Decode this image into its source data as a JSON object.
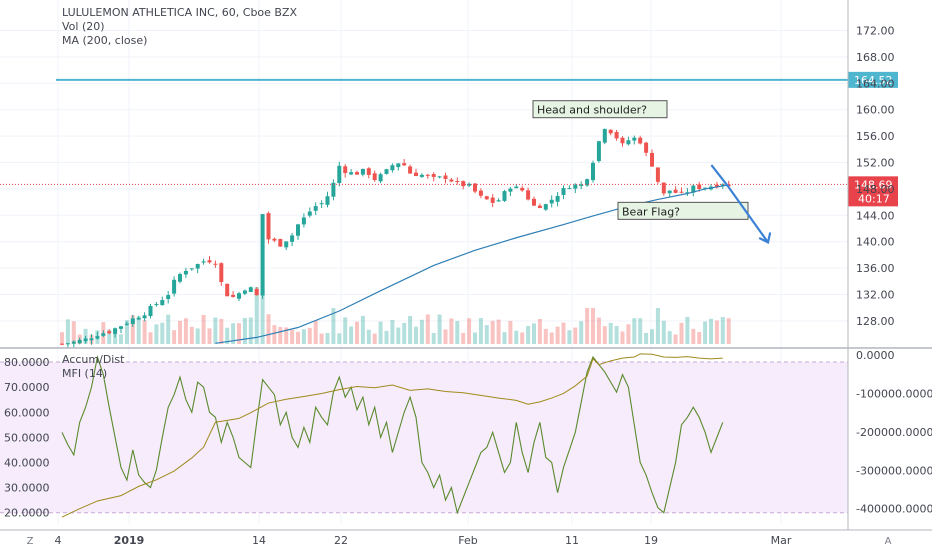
{
  "legend": {
    "symbol": "LULULEMON ATHLETICA INC, 60, Cboe BZX",
    "vol": "Vol (20)",
    "ma": "MA (200, close)",
    "ad": "Accum/Dist",
    "mfi": "MFI (14)"
  },
  "badges": {
    "resistance": "164.52",
    "last_price": "148.69",
    "countdown": "40:17"
  },
  "annotations": {
    "hs": "Head and shoulder?",
    "flag": "Bear Flag?"
  },
  "corner": {
    "left": "Z",
    "right": "A"
  },
  "colors": {
    "up": "#26a69a",
    "down": "#ef5350",
    "ma": "#2f7fb6",
    "resistance": "#4fb6cf",
    "arrow": "#3b82d6",
    "mfi": "#5a8a2e",
    "ad": "#a08a1c",
    "mfi_bg": "#f6ecfb",
    "price_badge": "#e8434b"
  },
  "chart_data": [
    {
      "type": "candlestick",
      "x_tick_labels": [
        "4",
        "2019",
        "14",
        "22",
        "Feb",
        "11",
        "19",
        "Mar"
      ],
      "y_tick_labels": [
        "128.00",
        "132.00",
        "136.00",
        "140.00",
        "144.00",
        "148.00",
        "152.00",
        "156.00",
        "160.00",
        "164.00",
        "168.00",
        "172.00"
      ],
      "ylim": [
        124.5,
        174.5
      ],
      "resistance_level": 164.52,
      "last_price": 148.69,
      "close_path": [
        [
          0,
          124.5
        ],
        [
          2,
          124.8
        ],
        [
          4,
          125.2
        ],
        [
          6,
          126
        ],
        [
          8,
          126.4
        ],
        [
          10,
          127.3
        ],
        [
          12,
          128.3
        ],
        [
          14,
          129.2
        ],
        [
          16,
          130.6
        ],
        [
          18,
          132.1
        ],
        [
          19.4,
          134.6
        ],
        [
          21,
          135.8
        ],
        [
          22.7,
          136.4
        ],
        [
          24.5,
          137.3
        ],
        [
          26,
          136.9
        ],
        [
          27.5,
          132.2
        ],
        [
          29,
          131.6
        ],
        [
          30.5,
          132.5
        ],
        [
          31.5,
          133.4
        ],
        [
          33,
          131.8
        ],
        [
          34,
          144.2
        ],
        [
          35,
          140.4
        ],
        [
          37,
          139.6
        ],
        [
          39,
          141
        ],
        [
          40,
          142.6
        ],
        [
          41.5,
          144
        ],
        [
          42.5,
          145.2
        ],
        [
          44.5,
          146
        ],
        [
          46,
          148.8
        ],
        [
          47,
          151.5
        ],
        [
          48.5,
          150.4
        ],
        [
          50,
          150.4
        ],
        [
          51.5,
          150.8
        ],
        [
          53,
          149.5
        ],
        [
          54.5,
          150.2
        ],
        [
          56,
          151.6
        ],
        [
          57.5,
          152.2
        ],
        [
          59,
          150.4
        ],
        [
          61,
          150.1
        ],
        [
          63,
          149.5
        ],
        [
          65,
          149.8
        ],
        [
          67,
          148.8
        ],
        [
          69,
          148.4
        ],
        [
          71,
          146.7
        ],
        [
          73.5,
          145.8
        ],
        [
          76,
          148.4
        ],
        [
          78,
          147.8
        ],
        [
          80,
          145.4
        ],
        [
          82,
          145.6
        ],
        [
          84,
          147.2
        ],
        [
          86,
          148.5
        ],
        [
          88,
          148.6
        ],
        [
          89.5,
          150.5
        ],
        [
          90.5,
          154.1
        ],
        [
          92,
          157.4
        ],
        [
          93.5,
          156.4
        ],
        [
          95,
          154.6
        ],
        [
          96,
          155.4
        ],
        [
          97.5,
          155.8
        ],
        [
          98.5,
          154.6
        ],
        [
          99.5,
          151.9
        ],
        [
          100.5,
          151.5
        ],
        [
          101.5,
          146.8
        ],
        [
          103,
          147.8
        ],
        [
          105,
          147.1
        ],
        [
          107,
          148.2
        ],
        [
          109,
          148.3
        ],
        [
          110.5,
          148.5
        ],
        [
          112,
          148.9
        ],
        [
          113,
          148.3
        ]
      ],
      "ma200": [
        [
          26,
          124.6
        ],
        [
          33,
          125.5
        ],
        [
          40,
          127
        ],
        [
          47,
          129.5
        ],
        [
          55,
          133
        ],
        [
          63,
          136.4
        ],
        [
          70,
          138.7
        ],
        [
          77,
          140.6
        ],
        [
          85,
          142.6
        ],
        [
          90,
          143.9
        ],
        [
          96,
          145.4
        ],
        [
          101,
          146.4
        ],
        [
          106,
          147.3
        ],
        [
          109,
          148
        ],
        [
          113,
          148.6
        ]
      ],
      "volume_range": [
        0,
        20
      ]
    },
    {
      "type": "line",
      "title": "Accum/Dist / MFI (14)",
      "y_left_tick_labels": [
        "20.0000",
        "30.0000",
        "40.0000",
        "50.0000",
        "60.0000",
        "70.0000",
        "80.0000"
      ],
      "y_right_tick_labels": [
        "0.0000",
        "-100000.0000",
        "-200000.0000",
        "-300000.0000",
        "-400000.0000"
      ],
      "mfi_ylim": [
        15.5,
        84
      ],
      "ad_ylim": [
        -440000,
        8000
      ],
      "mfi_bands": [
        20,
        80
      ],
      "series": [
        {
          "name": "MFI (14)",
          "points": [
            [
              0,
              52
            ],
            [
              1,
              47
            ],
            [
              2,
              43
            ],
            [
              3,
              56
            ],
            [
              4,
              62
            ],
            [
              5,
              70
            ],
            [
              6,
              82
            ],
            [
              7,
              75
            ],
            [
              8,
              62
            ],
            [
              9,
              50
            ],
            [
              10,
              38
            ],
            [
              11,
              33
            ],
            [
              12,
              45
            ],
            [
              13,
              35
            ],
            [
              14,
              32
            ],
            [
              15,
              30
            ],
            [
              16,
              37
            ],
            [
              17,
              50
            ],
            [
              18,
              62
            ],
            [
              19,
              67
            ],
            [
              20,
              74
            ],
            [
              21,
              65
            ],
            [
              22,
              60
            ],
            [
              23,
              72
            ],
            [
              24,
              70
            ],
            [
              25,
              60
            ],
            [
              26,
              58
            ],
            [
              27,
              48
            ],
            [
              28,
              56
            ],
            [
              29,
              50
            ],
            [
              30,
              42
            ],
            [
              31,
              40
            ],
            [
              32,
              38
            ],
            [
              33,
              56
            ],
            [
              34,
              73
            ],
            [
              35,
              70
            ],
            [
              36,
              67
            ],
            [
              37,
              55
            ],
            [
              38,
              60
            ],
            [
              39,
              50
            ],
            [
              40,
              46
            ],
            [
              41,
              54
            ],
            [
              42,
              48
            ],
            [
              43,
              62
            ],
            [
              44,
              58
            ],
            [
              45,
              55
            ],
            [
              46,
              68
            ],
            [
              47,
              74
            ],
            [
              48,
              66
            ],
            [
              49,
              70
            ],
            [
              50,
              61
            ],
            [
              51,
              66
            ],
            [
              52,
              55
            ],
            [
              53,
              62
            ],
            [
              54,
              50
            ],
            [
              55,
              56
            ],
            [
              56,
              44
            ],
            [
              57,
              52
            ],
            [
              58,
              60
            ],
            [
              59,
              66
            ],
            [
              60,
              58
            ],
            [
              61,
              40
            ],
            [
              62,
              36
            ],
            [
              63,
              30
            ],
            [
              64,
              35
            ],
            [
              65,
              25
            ],
            [
              66,
              30
            ],
            [
              67,
              20
            ],
            [
              68,
              26
            ],
            [
              69,
              32
            ],
            [
              70,
              38
            ],
            [
              71,
              44
            ],
            [
              72,
              46
            ],
            [
              73,
              52
            ],
            [
              74,
              44
            ],
            [
              75,
              36
            ],
            [
              76,
              40
            ],
            [
              77,
              56
            ],
            [
              78,
              44
            ],
            [
              79,
              36
            ],
            [
              80,
              48
            ],
            [
              81,
              56
            ],
            [
              82,
              42
            ],
            [
              83,
              40
            ],
            [
              84,
              28
            ],
            [
              85,
              38
            ],
            [
              86,
              45
            ],
            [
              87,
              52
            ],
            [
              88,
              64
            ],
            [
              89,
              76
            ],
            [
              90,
              82
            ],
            [
              91,
              79
            ],
            [
              92,
              76
            ],
            [
              93,
              72
            ],
            [
              94,
              68
            ],
            [
              95,
              75
            ],
            [
              96,
              70
            ],
            [
              97,
              55
            ],
            [
              98,
              40
            ],
            [
              99,
              35
            ],
            [
              100,
              28
            ],
            [
              101,
              22
            ],
            [
              102,
              20
            ],
            [
              103,
              30
            ],
            [
              104,
              40
            ],
            [
              105,
              55
            ],
            [
              106,
              58
            ],
            [
              107,
              62
            ],
            [
              108,
              58
            ],
            [
              109,
              52
            ],
            [
              110,
              44
            ],
            [
              111,
              50
            ],
            [
              112,
              56
            ]
          ]
        },
        {
          "name": "Accum/Dist",
          "points": [
            [
              0,
              -422000
            ],
            [
              3,
              -400000
            ],
            [
              6,
              -380000
            ],
            [
              10,
              -366000
            ],
            [
              13,
              -342000
            ],
            [
              16,
              -325000
            ],
            [
              19,
              -302000
            ],
            [
              22,
              -268000
            ],
            [
              24,
              -240000
            ],
            [
              26,
              -175000
            ],
            [
              28,
              -170000
            ],
            [
              30,
              -165000
            ],
            [
              32,
              -150000
            ],
            [
              35,
              -125000
            ],
            [
              38,
              -115000
            ],
            [
              41,
              -108000
            ],
            [
              44,
              -100000
            ],
            [
              47,
              -90000
            ],
            [
              50,
              -82000
            ],
            [
              53,
              -85000
            ],
            [
              56,
              -78000
            ],
            [
              59,
              -92000
            ],
            [
              62,
              -88000
            ],
            [
              65,
              -95000
            ],
            [
              68,
              -98000
            ],
            [
              71,
              -105000
            ],
            [
              74,
              -112000
            ],
            [
              77,
              -118000
            ],
            [
              79,
              -128000
            ],
            [
              81,
              -122000
            ],
            [
              83,
              -112000
            ],
            [
              85,
              -100000
            ],
            [
              87,
              -80000
            ],
            [
              89,
              -55000
            ],
            [
              90,
              -10000
            ],
            [
              91,
              -25000
            ],
            [
              93,
              -15000
            ],
            [
              95,
              -8000
            ],
            [
              97,
              -5000
            ],
            [
              98,
              3000
            ],
            [
              100,
              2000
            ],
            [
              102,
              -5000
            ],
            [
              104,
              -6000
            ],
            [
              106,
              -4000
            ],
            [
              108,
              -8000
            ],
            [
              110,
              -10000
            ],
            [
              112,
              -8000
            ]
          ]
        }
      ]
    }
  ]
}
